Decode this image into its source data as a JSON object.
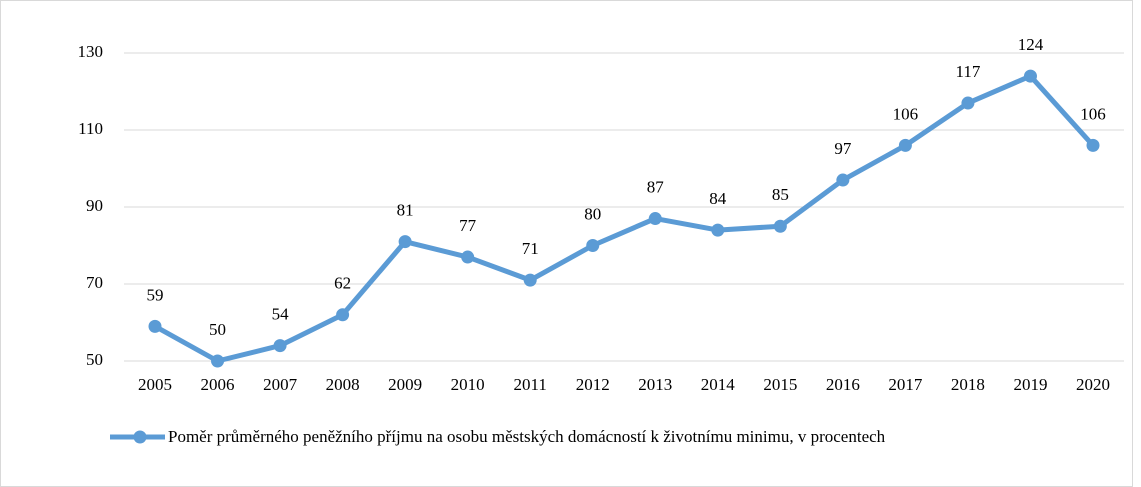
{
  "chart_data": {
    "type": "line",
    "categories": [
      "2005",
      "2006",
      "2007",
      "2008",
      "2009",
      "2010",
      "2011",
      "2012",
      "2013",
      "2014",
      "2015",
      "2016",
      "2017",
      "2018",
      "2019",
      "2020"
    ],
    "series": [
      {
        "name": "Poměr průměrného peněžního příjmu na osobu městských domácností k životnímu minimu, v procentech",
        "color": "#5b9bd5",
        "values": [
          59,
          50,
          54,
          62,
          81,
          77,
          71,
          80,
          87,
          84,
          85,
          97,
          106,
          117,
          124,
          106
        ]
      }
    ],
    "ylim": [
      50,
      130
    ],
    "yticks": [
      50,
      70,
      90,
      110,
      130
    ],
    "grid": true,
    "legend": "bottom"
  }
}
